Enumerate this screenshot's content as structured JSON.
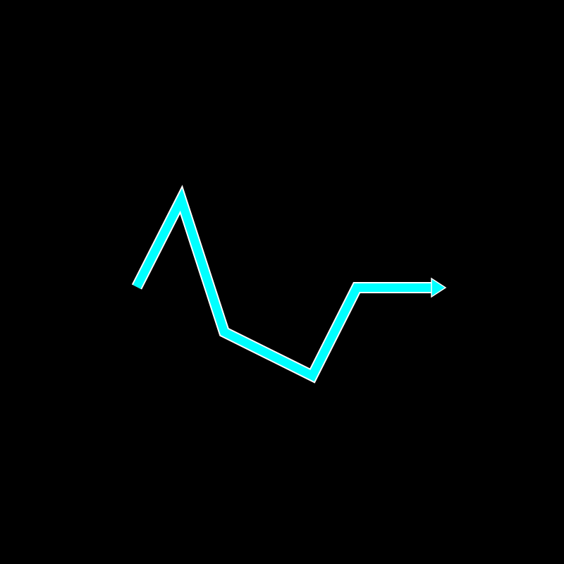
{
  "canvas": {
    "background": "#000000"
  },
  "path": {
    "color": "#00FFFF",
    "outline_color": "#FFFFFF",
    "has_arrowhead": true,
    "arrowhead_icon": "arrow-right-icon",
    "segment_count": 5
  }
}
